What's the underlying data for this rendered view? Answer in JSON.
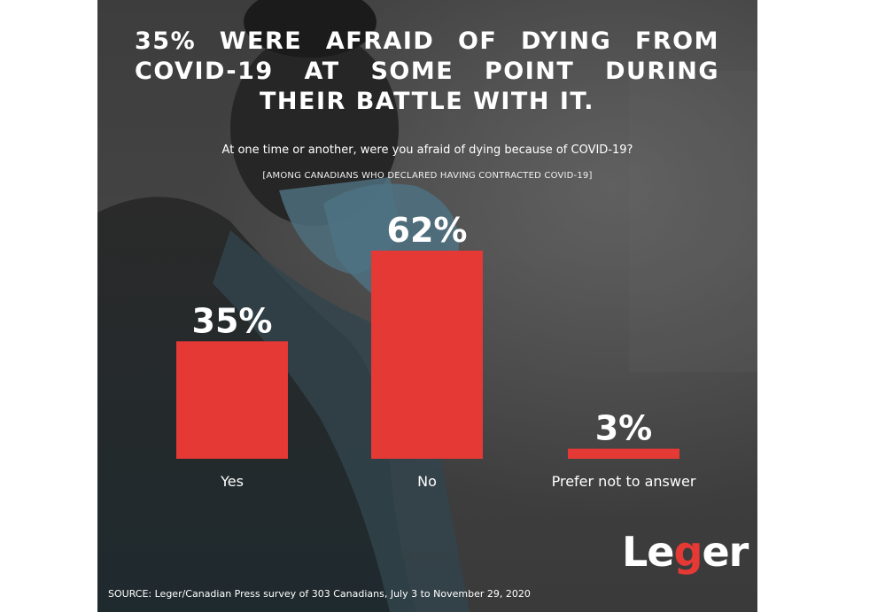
{
  "header": {
    "title": "35% WERE AFRAID OF DYING FROM COVID-19 AT SOME POINT DURING THEIR BATTLE WITH IT.",
    "question": "At one time or another, were you afraid of dying because of COVID-19?",
    "subquestion": "[AMONG CANADIANS WHO DECLARED HAVING CONTRACTED COVID-19]"
  },
  "chart_data": {
    "type": "bar",
    "categories": [
      "Yes",
      "No",
      "Prefer not to answer"
    ],
    "values": [
      35,
      62,
      3
    ],
    "value_labels": [
      "35%",
      "62%",
      "3%"
    ],
    "unit": "%",
    "title": "",
    "xlabel": "",
    "ylabel": "",
    "ylim": [
      0,
      62
    ],
    "grid": false,
    "bar_color": "#e53935"
  },
  "logo": {
    "text": "Leger",
    "accent_color": "#e53935"
  },
  "footer": {
    "source": "SOURCE: Leger/Canadian Press survey of 303 Canadians, July 3 to November 29, 2020"
  }
}
